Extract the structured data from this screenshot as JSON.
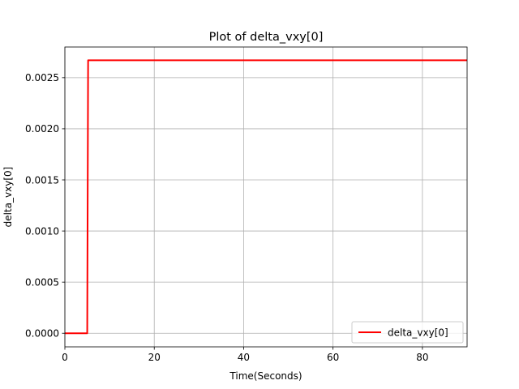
{
  "chart_data": {
    "type": "line",
    "title": "Plot of delta_vxy[0]",
    "xlabel": "Time(Seconds)",
    "ylabel": "delta_vxy[0]",
    "xlim": [
      0,
      90
    ],
    "ylim": [
      -0.000133,
      0.0028
    ],
    "xticks": [
      0,
      20,
      40,
      60,
      80
    ],
    "xtick_labels": [
      "0",
      "20",
      "40",
      "60",
      "80"
    ],
    "yticks": [
      0,
      0.0005,
      0.001,
      0.0015,
      0.002,
      0.0025
    ],
    "ytick_labels": [
      "0.0000",
      "0.0005",
      "0.0010",
      "0.0015",
      "0.0020",
      "0.0025"
    ],
    "grid": true,
    "legend_position": "lower-right",
    "series": [
      {
        "name": "delta_vxy[0]",
        "color": "#ff0000",
        "x": [
          0,
          5,
          5.2,
          90
        ],
        "y": [
          0,
          0,
          0.00267,
          0.00267
        ]
      }
    ]
  }
}
